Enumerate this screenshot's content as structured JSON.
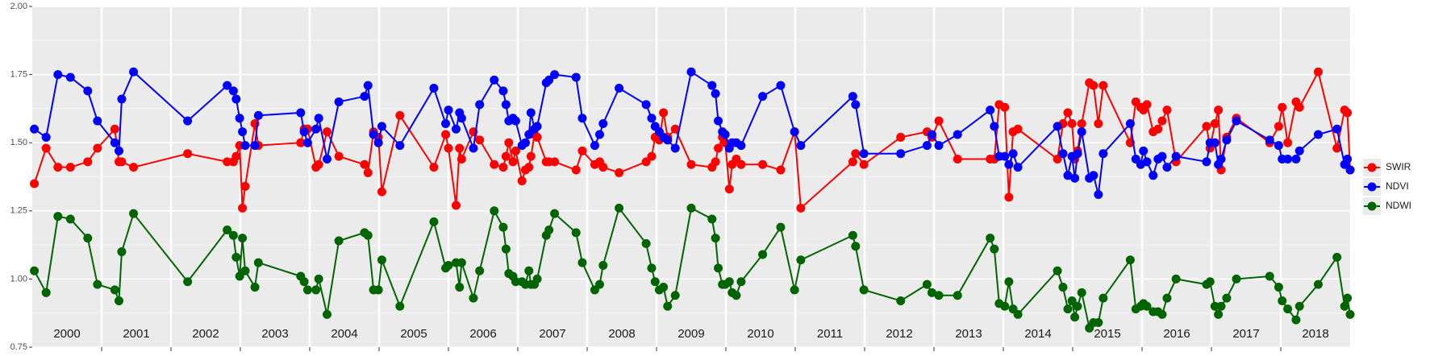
{
  "chart_data": {
    "type": "line",
    "year_labels": [
      "2000",
      "2001",
      "2002",
      "2003",
      "2004",
      "2005",
      "2006",
      "2007",
      "2008",
      "2009",
      "2010",
      "2011",
      "2012",
      "2013",
      "2014",
      "2015",
      "2016",
      "2017",
      "2018"
    ],
    "xlim": [
      2000,
      2019
    ],
    "ylim": [
      0.75,
      2.0
    ],
    "yticks": [
      0.75,
      {
        "value": 1.0,
        "label": "1.00"
      },
      1.25,
      {
        "value": 1.5,
        "label": "1.50"
      },
      1.75,
      {
        "value": 2.0,
        "label": "2.00"
      }
    ],
    "grid": true,
    "legend": "right",
    "x": [
      2000.03,
      2000.2,
      2000.37,
      2000.55,
      2000.8,
      2000.94,
      2001.19,
      2001.25,
      2001.29,
      2001.46,
      2002.24,
      2002.81,
      2002.9,
      2002.94,
      2002.99,
      2003.03,
      2003.07,
      2003.21,
      2003.26,
      2003.87,
      2003.92,
      2003.97,
      2004.09,
      2004.13,
      2004.25,
      2004.42,
      2004.79,
      2004.84,
      2004.92,
      2004.99,
      2005.04,
      2005.3,
      2005.79,
      2005.96,
      2006.0,
      2006.11,
      2006.16,
      2006.19,
      2006.36,
      2006.45,
      2006.66,
      2006.79,
      2006.83,
      2006.87,
      2006.93,
      2006.97,
      2007.06,
      2007.11,
      2007.16,
      2007.19,
      2007.24,
      2007.28,
      2007.41,
      2007.45,
      2007.53,
      2007.84,
      2007.93,
      2008.11,
      2008.18,
      2008.23,
      2008.46,
      2008.85,
      2008.93,
      2008.98,
      2009.04,
      2009.1,
      2009.16,
      2009.27,
      2009.5,
      2009.8,
      2009.85,
      2009.89,
      2009.95,
      2009.99,
      2010.05,
      2010.09,
      2010.15,
      2010.22,
      2010.53,
      2010.79,
      2010.99,
      2011.08,
      2011.83,
      2011.87,
      2011.99,
      2012.52,
      2012.9,
      2012.97,
      2013.07,
      2013.34,
      2013.81,
      2013.87,
      2013.94,
      2014.02,
      2014.08,
      2014.14,
      2014.21,
      2014.78,
      2014.86,
      2014.93,
      2014.99,
      2015.03,
      2015.07,
      2015.13,
      2015.24,
      2015.3,
      2015.37,
      2015.44,
      2015.83,
      2015.91,
      2015.98,
      2016.02,
      2016.07,
      2016.16,
      2016.23,
      2016.29,
      2016.36,
      2016.49,
      2016.93,
      2016.98,
      2017.05,
      2017.1,
      2017.14,
      2017.22,
      2017.36,
      2017.84,
      2017.97,
      2018.02,
      2018.1,
      2018.22,
      2018.27,
      2018.54,
      2018.81,
      2018.92,
      2018.96,
      2019.0
    ],
    "series": [
      {
        "name": "SWIR",
        "color": "#ff0000",
        "values": [
          1.35,
          1.48,
          1.41,
          1.41,
          1.43,
          1.48,
          1.55,
          1.43,
          1.43,
          1.41,
          1.46,
          1.43,
          1.43,
          1.45,
          1.49,
          1.26,
          1.34,
          1.57,
          1.49,
          1.5,
          1.55,
          1.55,
          1.41,
          1.42,
          1.54,
          1.45,
          1.42,
          1.39,
          1.54,
          1.52,
          1.32,
          1.6,
          1.41,
          1.53,
          1.48,
          1.27,
          1.48,
          1.44,
          1.54,
          1.51,
          1.42,
          1.41,
          1.45,
          1.5,
          1.43,
          1.47,
          1.36,
          1.4,
          1.41,
          1.45,
          1.53,
          1.52,
          1.43,
          1.43,
          1.43,
          1.4,
          1.47,
          1.42,
          1.43,
          1.41,
          1.39,
          1.43,
          1.45,
          1.52,
          1.51,
          1.61,
          1.52,
          1.55,
          1.42,
          1.41,
          1.43,
          1.48,
          1.52,
          1.5,
          1.33,
          1.42,
          1.44,
          1.42,
          1.42,
          1.4,
          1.54,
          1.26,
          1.43,
          1.46,
          1.42,
          1.52,
          1.54,
          1.52,
          1.58,
          1.44,
          1.44,
          1.44,
          1.64,
          1.63,
          1.3,
          1.54,
          1.55,
          1.44,
          1.57,
          1.61,
          1.57,
          1.44,
          1.47,
          1.57,
          1.72,
          1.71,
          1.57,
          1.71,
          1.5,
          1.65,
          1.63,
          1.62,
          1.64,
          1.54,
          1.55,
          1.58,
          1.62,
          1.43,
          1.56,
          1.48,
          1.57,
          1.62,
          1.4,
          1.52,
          1.59,
          1.5,
          1.56,
          1.63,
          1.5,
          1.65,
          1.63,
          1.76,
          1.48,
          1.62,
          1.61,
          1.4
        ]
      },
      {
        "name": "NDVI",
        "color": "#0000ff",
        "values": [
          1.55,
          1.52,
          1.75,
          1.74,
          1.69,
          1.58,
          1.5,
          1.47,
          1.66,
          1.76,
          1.58,
          1.71,
          1.69,
          1.66,
          1.59,
          1.54,
          1.49,
          1.49,
          1.6,
          1.61,
          1.54,
          1.5,
          1.55,
          1.59,
          1.44,
          1.65,
          1.67,
          1.71,
          1.53,
          1.5,
          1.56,
          1.49,
          1.7,
          1.57,
          1.62,
          1.55,
          1.61,
          1.59,
          1.48,
          1.64,
          1.73,
          1.69,
          1.64,
          1.58,
          1.59,
          1.58,
          1.49,
          1.5,
          1.53,
          1.61,
          1.55,
          1.56,
          1.72,
          1.73,
          1.75,
          1.74,
          1.59,
          1.49,
          1.53,
          1.57,
          1.7,
          1.64,
          1.59,
          1.56,
          1.54,
          1.52,
          1.51,
          1.48,
          1.76,
          1.71,
          1.68,
          1.58,
          1.54,
          1.53,
          1.48,
          1.5,
          1.5,
          1.49,
          1.67,
          1.71,
          1.54,
          1.49,
          1.67,
          1.64,
          1.46,
          1.46,
          1.49,
          1.53,
          1.49,
          1.53,
          1.62,
          1.56,
          1.45,
          1.45,
          1.42,
          1.46,
          1.41,
          1.56,
          1.46,
          1.38,
          1.45,
          1.37,
          1.46,
          1.54,
          1.37,
          1.38,
          1.31,
          1.46,
          1.57,
          1.44,
          1.42,
          1.47,
          1.43,
          1.38,
          1.44,
          1.45,
          1.41,
          1.45,
          1.43,
          1.5,
          1.5,
          1.42,
          1.44,
          1.51,
          1.58,
          1.51,
          1.49,
          1.44,
          1.44,
          1.44,
          1.47,
          1.53,
          1.55,
          1.42,
          1.44,
          1.4
        ]
      },
      {
        "name": "NDWI",
        "color": "#006400",
        "values": [
          1.03,
          0.95,
          1.23,
          1.22,
          1.15,
          0.98,
          0.96,
          0.92,
          1.1,
          1.24,
          0.99,
          1.18,
          1.16,
          1.08,
          1.01,
          1.15,
          1.03,
          0.97,
          1.06,
          1.01,
          0.99,
          0.96,
          0.96,
          1.0,
          0.87,
          1.14,
          1.17,
          1.16,
          0.96,
          0.96,
          1.07,
          0.9,
          1.21,
          1.04,
          1.05,
          1.06,
          0.97,
          1.06,
          0.93,
          1.03,
          1.25,
          1.19,
          1.11,
          1.02,
          1.01,
          0.99,
          0.99,
          0.98,
          1.03,
          0.98,
          0.98,
          1.0,
          1.16,
          1.18,
          1.24,
          1.17,
          1.06,
          0.96,
          0.98,
          1.05,
          1.26,
          1.13,
          1.04,
          0.99,
          0.96,
          0.97,
          0.9,
          0.94,
          1.26,
          1.22,
          1.15,
          1.04,
          0.98,
          0.98,
          0.99,
          0.95,
          0.94,
          0.99,
          1.09,
          1.19,
          0.96,
          1.07,
          1.16,
          1.12,
          0.96,
          0.92,
          0.98,
          0.95,
          0.94,
          0.94,
          1.15,
          1.11,
          0.91,
          0.9,
          0.99,
          0.89,
          0.87,
          1.03,
          0.97,
          0.89,
          0.92,
          0.86,
          0.9,
          0.95,
          0.82,
          0.84,
          0.84,
          0.93,
          1.07,
          0.89,
          0.9,
          0.91,
          0.9,
          0.88,
          0.88,
          0.87,
          0.93,
          1.0,
          0.98,
          0.99,
          0.9,
          0.87,
          0.9,
          0.93,
          1.0,
          1.01,
          0.97,
          0.92,
          0.89,
          0.85,
          0.9,
          0.98,
          1.08,
          0.9,
          0.93,
          0.87
        ]
      }
    ]
  }
}
